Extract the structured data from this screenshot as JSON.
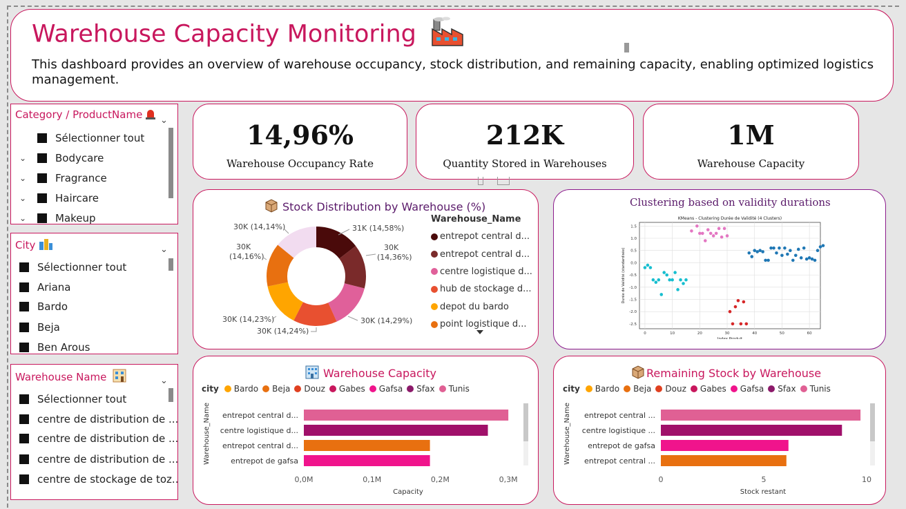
{
  "header": {
    "title": "Warehouse Capacity Monitoring",
    "description": "This dashboard provides an overview of warehouse occupancy, stock distribution, and remaining capacity, enabling optimized logistics management."
  },
  "kpis": [
    {
      "value": "14,96%",
      "label": "Warehouse Occupancy Rate"
    },
    {
      "value": "212K",
      "label": "Quantity Stored in Warehouses"
    },
    {
      "value": "1M",
      "label": "Warehouse Capacity"
    }
  ],
  "slicers": {
    "category": {
      "title": "Category / ProductName",
      "items": [
        "Sélectionner tout",
        "Bodycare",
        "Fragrance",
        "Haircare",
        "Makeup"
      ]
    },
    "city": {
      "title": "City",
      "items": [
        "Sélectionner tout",
        "Ariana",
        "Bardo",
        "Beja",
        "Ben Arous"
      ]
    },
    "warehouse": {
      "title": "Warehouse Name",
      "items": [
        "Sélectionner tout",
        "centre de distribution de ...",
        "centre de distribution de ...",
        "centre de distribution de ...",
        "centre de stockage de toz..."
      ]
    }
  },
  "colors": {
    "accent": "#c8175d",
    "brown_dark": "#4a0a0a",
    "brown": "#7a2a2a",
    "pink": "#e0609a",
    "coral": "#e85030",
    "gold": "#ffa500",
    "orange": "#e87010",
    "lavender": "#f2dcf0",
    "magenta": "#f0148c",
    "purple": "#8c1a6a",
    "light_pink": "#e06094"
  },
  "chart_data": [
    {
      "type": "pie",
      "title": "Stock Distribution by Warehouse (%)",
      "legend_title": "Warehouse_Name",
      "slices": [
        {
          "name": "entrepot central d...",
          "value": 31,
          "label": "31K (14,58%)",
          "color": "#4a0a0a"
        },
        {
          "name": "entrepot central d...",
          "value": 30.5,
          "label": "30K (14,36%)",
          "color": "#7a2a2a"
        },
        {
          "name": "centre logistique d...",
          "value": 30.4,
          "label": "30K (14,29%)",
          "color": "#e0609a"
        },
        {
          "name": "hub de stockage d...",
          "value": 30.3,
          "label": "30K (14,24%)",
          "color": "#e85030"
        },
        {
          "name": "depot du bardo",
          "value": 30.2,
          "label": "30K (14,23%)",
          "color": "#ffa500"
        },
        {
          "name": "point logistique d...",
          "value": 30.1,
          "label": "30K (14,16%)",
          "color": "#e87010"
        },
        {
          "name": "",
          "value": 30,
          "label": "30K (14,14%)",
          "color": "#f2dcf0"
        }
      ]
    },
    {
      "type": "scatter",
      "title": "Clustering based on validity durations",
      "subtitle": "KMeans - Clustering Durée de Validité (4 Clusters)",
      "xlabel": "Index Produit",
      "ylabel": "Durée de Validité (standardisée)",
      "xlim": [
        -2,
        64
      ],
      "ylim": [
        -2.7,
        1.65
      ],
      "xticks": [
        0,
        10,
        20,
        30,
        40,
        50,
        60
      ],
      "yticks": [
        "1.5",
        "1.0",
        "0.5",
        "0.0",
        "-0.5",
        "-1.0",
        "-1.5",
        "-2.0",
        "-2.5"
      ],
      "ytick_values": [
        1.5,
        1.0,
        0.5,
        0.0,
        -0.5,
        -1.0,
        -1.5,
        -2.0,
        -2.5
      ],
      "clusters": [
        {
          "color": "#17becf",
          "points": [
            [
              0,
              -0.2
            ],
            [
              1,
              -0.1
            ],
            [
              2,
              -0.2
            ],
            [
              3,
              -0.7
            ],
            [
              4,
              -0.8
            ],
            [
              5,
              -0.7
            ],
            [
              6,
              -1.3
            ],
            [
              7,
              -0.4
            ],
            [
              8,
              -0.5
            ],
            [
              9,
              -0.7
            ],
            [
              10,
              -0.7
            ],
            [
              11,
              -0.4
            ],
            [
              12,
              -1.1
            ],
            [
              13,
              -0.7
            ],
            [
              14,
              -0.85
            ],
            [
              15,
              -0.7
            ]
          ]
        },
        {
          "color": "#e377c2",
          "points": [
            [
              17,
              1.3
            ],
            [
              19,
              1.5
            ],
            [
              20,
              1.2
            ],
            [
              21,
              1.2
            ],
            [
              22,
              0.9
            ],
            [
              23,
              1.35
            ],
            [
              24,
              1.2
            ],
            [
              25,
              1.1
            ],
            [
              26,
              1.2
            ],
            [
              27,
              1.4
            ],
            [
              28,
              1.05
            ],
            [
              29,
              1.4
            ],
            [
              30,
              1.1
            ]
          ]
        },
        {
          "color": "#d62728",
          "points": [
            [
              31,
              -2.0
            ],
            [
              32,
              -2.5
            ],
            [
              33,
              -1.8
            ],
            [
              34,
              -1.55
            ],
            [
              35,
              -2.5
            ],
            [
              36,
              -1.6
            ],
            [
              37,
              -2.5
            ]
          ]
        },
        {
          "color": "#1f77b4",
          "points": [
            [
              38,
              0.4
            ],
            [
              39,
              0.25
            ],
            [
              40,
              0.5
            ],
            [
              41,
              0.45
            ],
            [
              42,
              0.5
            ],
            [
              43,
              0.45
            ],
            [
              44,
              0.1
            ],
            [
              45,
              0.1
            ],
            [
              46,
              0.6
            ],
            [
              47,
              0.6
            ],
            [
              48,
              0.4
            ],
            [
              49,
              0.6
            ],
            [
              50,
              0.3
            ],
            [
              51,
              0.6
            ],
            [
              52,
              0.35
            ],
            [
              53,
              0.5
            ],
            [
              54,
              0.1
            ],
            [
              55,
              0.3
            ],
            [
              56,
              0.55
            ],
            [
              57,
              0.2
            ],
            [
              58,
              0.6
            ],
            [
              59,
              0.15
            ],
            [
              60,
              0.2
            ],
            [
              61,
              0.15
            ],
            [
              62,
              0.1
            ],
            [
              63,
              0.5
            ],
            [
              64,
              0.65
            ],
            [
              65,
              0.7
            ]
          ]
        }
      ]
    },
    {
      "type": "bar",
      "orientation": "horizontal",
      "title": "Warehouse Capacity",
      "legend_title": "city",
      "legend": [
        {
          "name": "Bardo",
          "color": "#ffa500"
        },
        {
          "name": "Beja",
          "color": "#e87010"
        },
        {
          "name": "Douz",
          "color": "#e04020"
        },
        {
          "name": "Gabes",
          "color": "#c8175d"
        },
        {
          "name": "Gafsa",
          "color": "#f0148c"
        },
        {
          "name": "Sfax",
          "color": "#8c1a6a"
        },
        {
          "name": "Tunis",
          "color": "#e06094"
        }
      ],
      "ylabel": "Warehouse_Name",
      "xlabel": "Capacity",
      "categories": [
        "entrepot central d...",
        "centre logistique d...",
        "entrepot central d...",
        "entrepot de gafsa"
      ],
      "values": [
        0.3,
        0.27,
        0.185,
        0.185
      ],
      "bar_colors": [
        "#e06094",
        "#a0106a",
        "#e87010",
        "#f0148c"
      ],
      "xlim": [
        0,
        0.31
      ],
      "xticks": [
        0,
        0.1,
        0.2,
        0.3
      ],
      "xtick_labels": [
        "0,0M",
        "0,1M",
        "0,2M",
        "0,3M"
      ]
    },
    {
      "type": "bar",
      "orientation": "horizontal",
      "title": "Remaining Stock by Warehouse",
      "legend_title": "city",
      "legend": [
        {
          "name": "Bardo",
          "color": "#ffa500"
        },
        {
          "name": "Beja",
          "color": "#e87010"
        },
        {
          "name": "Douz",
          "color": "#e04020"
        },
        {
          "name": "Gabes",
          "color": "#c8175d"
        },
        {
          "name": "Gafsa",
          "color": "#f0148c"
        },
        {
          "name": "Sfax",
          "color": "#8c1a6a"
        },
        {
          "name": "Tunis",
          "color": "#e06094"
        }
      ],
      "ylabel": "Warehouse_Name",
      "xlabel": "Stock restant",
      "categories": [
        "entrepot central ...",
        "centre logistique ...",
        "entrepot de gafsa",
        "entrepot central ..."
      ],
      "values": [
        9.7,
        8.8,
        6.2,
        6.1
      ],
      "bar_colors": [
        "#e06094",
        "#a0106a",
        "#f0148c",
        "#e87010"
      ],
      "xlim": [
        0,
        10.2
      ],
      "xticks": [
        0,
        5,
        10
      ],
      "xtick_labels": [
        "0",
        "5",
        "10"
      ]
    }
  ]
}
